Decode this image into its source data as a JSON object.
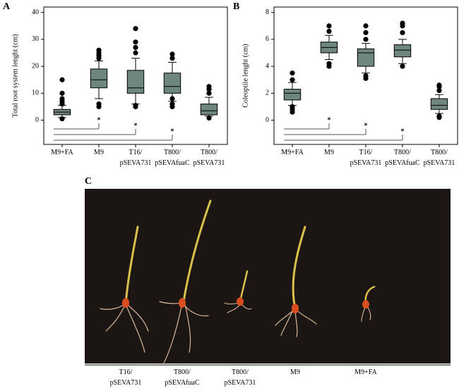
{
  "chart_data": [
    {
      "type": "box",
      "panel": "A",
      "ylabel": "Total root system lenght (cm)",
      "categories": [
        "M9+FA",
        "M9",
        "T16/\npSEVA731",
        "T800/\npSEVAfuaC",
        "T800/\npSEVA731"
      ],
      "ylim": [
        -9,
        42
      ],
      "yticks": [
        0,
        10,
        20,
        30,
        40
      ],
      "color": "#6e8580",
      "boxes": [
        {
          "whisker_low": 1,
          "q1": 2,
          "median": 3,
          "q3": 4,
          "whisker_high": 5.5,
          "outliers": [
            0.5,
            6,
            7,
            8,
            10,
            15
          ]
        },
        {
          "whisker_low": 8,
          "q1": 12,
          "median": 15,
          "q3": 19,
          "whisker_high": 22,
          "outliers": [
            5,
            6,
            23,
            24,
            25,
            26
          ]
        },
        {
          "whisker_low": 6,
          "q1": 10,
          "median": 12,
          "q3": 18.5,
          "whisker_high": 23,
          "outliers": [
            5,
            5.5,
            25,
            27,
            29,
            34
          ]
        },
        {
          "whisker_low": 7,
          "q1": 10,
          "median": 12.5,
          "q3": 17.5,
          "whisker_high": 21.5,
          "outliers": [
            5,
            6,
            8,
            23,
            24.5
          ]
        },
        {
          "whisker_low": 1.5,
          "q1": 2,
          "median": 3.5,
          "q3": 6,
          "whisker_high": 8.5,
          "outliers": [
            0.8,
            10,
            11.5,
            12.5
          ]
        }
      ],
      "annotations": [
        "*",
        "*",
        "*"
      ]
    },
    {
      "type": "box",
      "panel": "B",
      "ylabel": "Coleoptile lenght (cm)",
      "categories": [
        "M9+FA",
        "M9",
        "T16/\npSEVA731",
        "T800/\npSEVAfuaC",
        "T800/\npSEVA731"
      ],
      "ylim": [
        -1.8,
        8.4
      ],
      "yticks": [
        0,
        2,
        4,
        6,
        8
      ],
      "color": "#6e8580",
      "boxes": [
        {
          "whisker_low": 1.1,
          "q1": 1.5,
          "median": 2,
          "q3": 2.3,
          "whisker_high": 2.8,
          "outliers": [
            0.6,
            0.8,
            1,
            3,
            3.5
          ]
        },
        {
          "whisker_low": 4.5,
          "q1": 5,
          "median": 5.4,
          "q3": 5.8,
          "whisker_high": 6.3,
          "outliers": [
            4,
            4.2,
            6.6,
            7
          ]
        },
        {
          "whisker_low": 3.5,
          "q1": 4,
          "median": 5,
          "q3": 5.3,
          "whisker_high": 5.7,
          "outliers": [
            3.1,
            3.3,
            6,
            6.5,
            7
          ]
        },
        {
          "whisker_low": 4.2,
          "q1": 4.7,
          "median": 5.2,
          "q3": 5.6,
          "whisker_high": 6,
          "outliers": [
            4,
            6.5,
            7,
            7.2
          ]
        },
        {
          "whisker_low": 0.5,
          "q1": 0.8,
          "median": 1.1,
          "q3": 1.6,
          "whisker_high": 1.9,
          "outliers": [
            0.2,
            0.3,
            2.2,
            2.5,
            2.6
          ]
        }
      ],
      "annotations": [
        "*",
        "*",
        "*"
      ]
    }
  ],
  "photo": {
    "panel": "C",
    "labels": [
      "T16/\npSEVA731",
      "T800/\npSEVAfuaC",
      "T800/\npSEVA731",
      "M9",
      "M9+FA"
    ]
  }
}
